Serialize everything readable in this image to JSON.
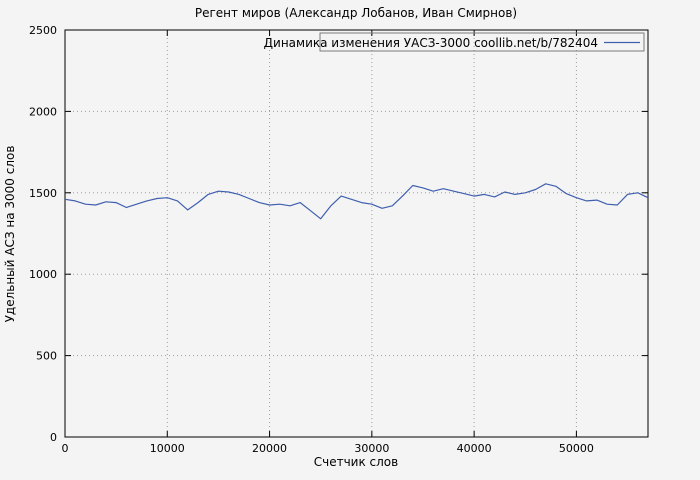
{
  "chart_data": {
    "type": "line",
    "title": "Регент миров (Александр Лобанов, Иван Смирнов)",
    "xlabel": "Счетчик слов",
    "ylabel": "Удельный АСЗ на 3000 слов",
    "xlim": [
      0,
      57000
    ],
    "ylim": [
      0,
      2500
    ],
    "xticks": [
      0,
      10000,
      20000,
      30000,
      40000,
      50000
    ],
    "yticks": [
      0,
      500,
      1000,
      1500,
      2000,
      2500
    ],
    "grid": true,
    "legend_position": "top-right",
    "line_color": "#3f5fae",
    "legend_text_color": "#000080",
    "series": [
      {
        "name": "Динамика изменения УАСЗ-3000 coollib.net/b/782404",
        "x": [
          0,
          1000,
          2000,
          3000,
          4000,
          5000,
          6000,
          7000,
          8000,
          9000,
          10000,
          11000,
          12000,
          13000,
          14000,
          15000,
          16000,
          17000,
          18000,
          19000,
          20000,
          21000,
          22000,
          23000,
          24000,
          25000,
          26000,
          27000,
          28000,
          29000,
          30000,
          31000,
          32000,
          33000,
          34000,
          35000,
          36000,
          37000,
          38000,
          39000,
          40000,
          41000,
          42000,
          43000,
          44000,
          45000,
          46000,
          47000,
          48000,
          49000,
          50000,
          51000,
          52000,
          53000,
          54000,
          55000,
          56000,
          57000
        ],
        "y": [
          1460,
          1450,
          1430,
          1425,
          1445,
          1440,
          1410,
          1430,
          1450,
          1465,
          1470,
          1450,
          1395,
          1440,
          1490,
          1510,
          1505,
          1490,
          1465,
          1440,
          1425,
          1430,
          1420,
          1440,
          1390,
          1340,
          1420,
          1480,
          1460,
          1440,
          1430,
          1405,
          1420,
          1480,
          1545,
          1530,
          1510,
          1525,
          1510,
          1495,
          1480,
          1490,
          1475,
          1505,
          1490,
          1500,
          1520,
          1555,
          1540,
          1495,
          1470,
          1450,
          1455,
          1430,
          1425,
          1490,
          1500,
          1470
        ]
      }
    ]
  }
}
